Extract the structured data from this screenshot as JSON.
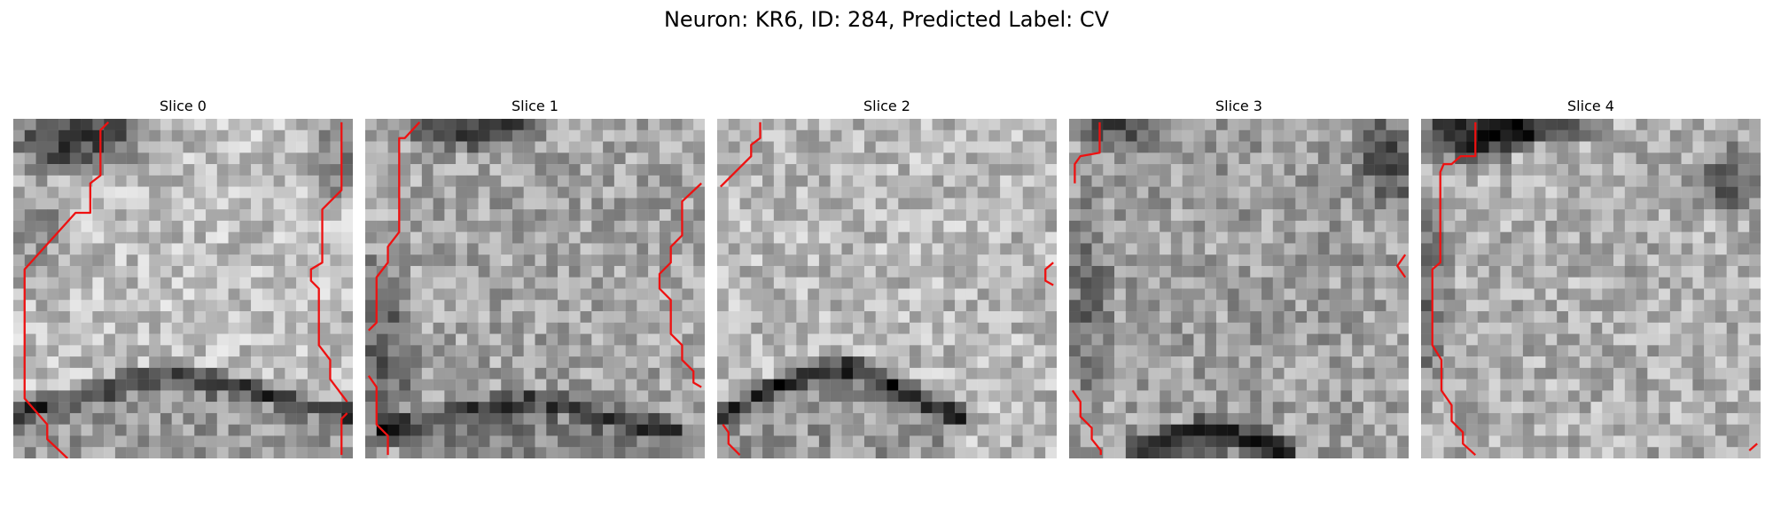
{
  "figure": {
    "title": "Neuron: KR6, ID: 284, Predicted Label: CV"
  },
  "panels": [
    {
      "title": "Slice 0"
    },
    {
      "title": "Slice 1"
    },
    {
      "title": "Slice 2"
    },
    {
      "title": "Slice 3"
    },
    {
      "title": "Slice 4"
    }
  ],
  "colors": {
    "contour": "#ee1111",
    "colormap": "grayscale"
  }
}
